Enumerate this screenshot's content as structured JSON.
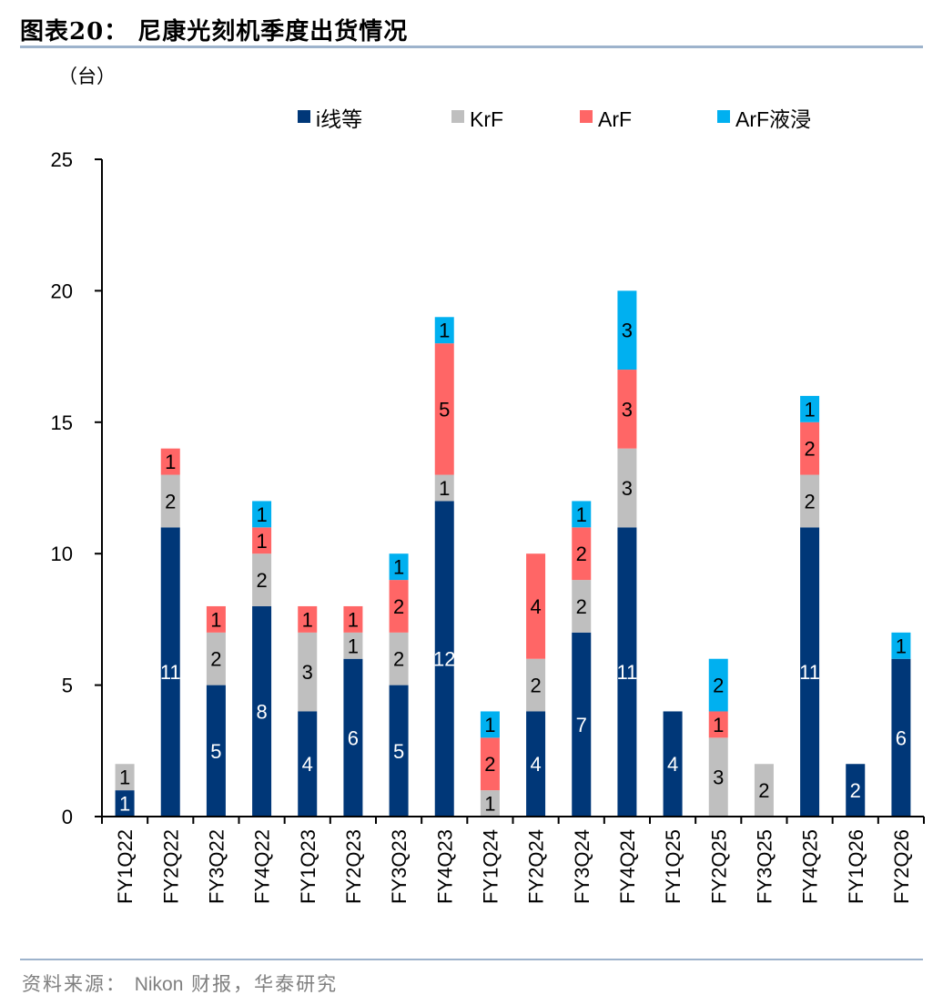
{
  "header": {
    "title": "图表20：  尼康光刻机季度出货情况",
    "unit": "（台）"
  },
  "footer": {
    "source_prefix": "资料来源：",
    "source_latin": "Nikon",
    "source_suffix": "财报，华泰研究"
  },
  "chart_data": {
    "type": "bar",
    "stacked": true,
    "title": "尼康光刻机季度出货情况",
    "ylabel": "（台）",
    "xlabel": "",
    "ylim": [
      0,
      25
    ],
    "yticks": [
      0,
      5,
      10,
      15,
      20,
      25
    ],
    "grid": false,
    "legend_position": "top-right",
    "categories": [
      "FY1Q22",
      "FY2Q22",
      "FY3Q22",
      "FY4Q22",
      "FY1Q23",
      "FY2Q23",
      "FY3Q23",
      "FY4Q23",
      "FY1Q24",
      "FY2Q24",
      "FY3Q24",
      "FY4Q24",
      "FY1Q25",
      "FY2Q25",
      "FY3Q25",
      "FY4Q25",
      "FY1Q26",
      "FY2Q26"
    ],
    "series": [
      {
        "name": "i线等",
        "color": "#003778",
        "label_color": "#ffffff",
        "values": [
          1,
          11,
          5,
          8,
          4,
          6,
          5,
          12,
          0,
          4,
          7,
          11,
          4,
          0,
          0,
          11,
          2,
          6
        ]
      },
      {
        "name": "KrF",
        "color": "#bfbfbf",
        "label_color": "#000000",
        "values": [
          1,
          2,
          2,
          2,
          3,
          1,
          2,
          1,
          1,
          2,
          2,
          3,
          0,
          3,
          2,
          2,
          0,
          0
        ]
      },
      {
        "name": "ArF",
        "color": "#ff6666",
        "label_color": "#000000",
        "values": [
          0,
          1,
          1,
          1,
          1,
          1,
          2,
          5,
          2,
          4,
          2,
          3,
          0,
          1,
          0,
          2,
          0,
          0
        ]
      },
      {
        "name": "ArF液浸",
        "color": "#00b0f0",
        "label_color": "#000000",
        "values": [
          0,
          0,
          0,
          1,
          0,
          0,
          1,
          1,
          1,
          0,
          1,
          3,
          0,
          2,
          0,
          1,
          0,
          1
        ]
      }
    ]
  }
}
